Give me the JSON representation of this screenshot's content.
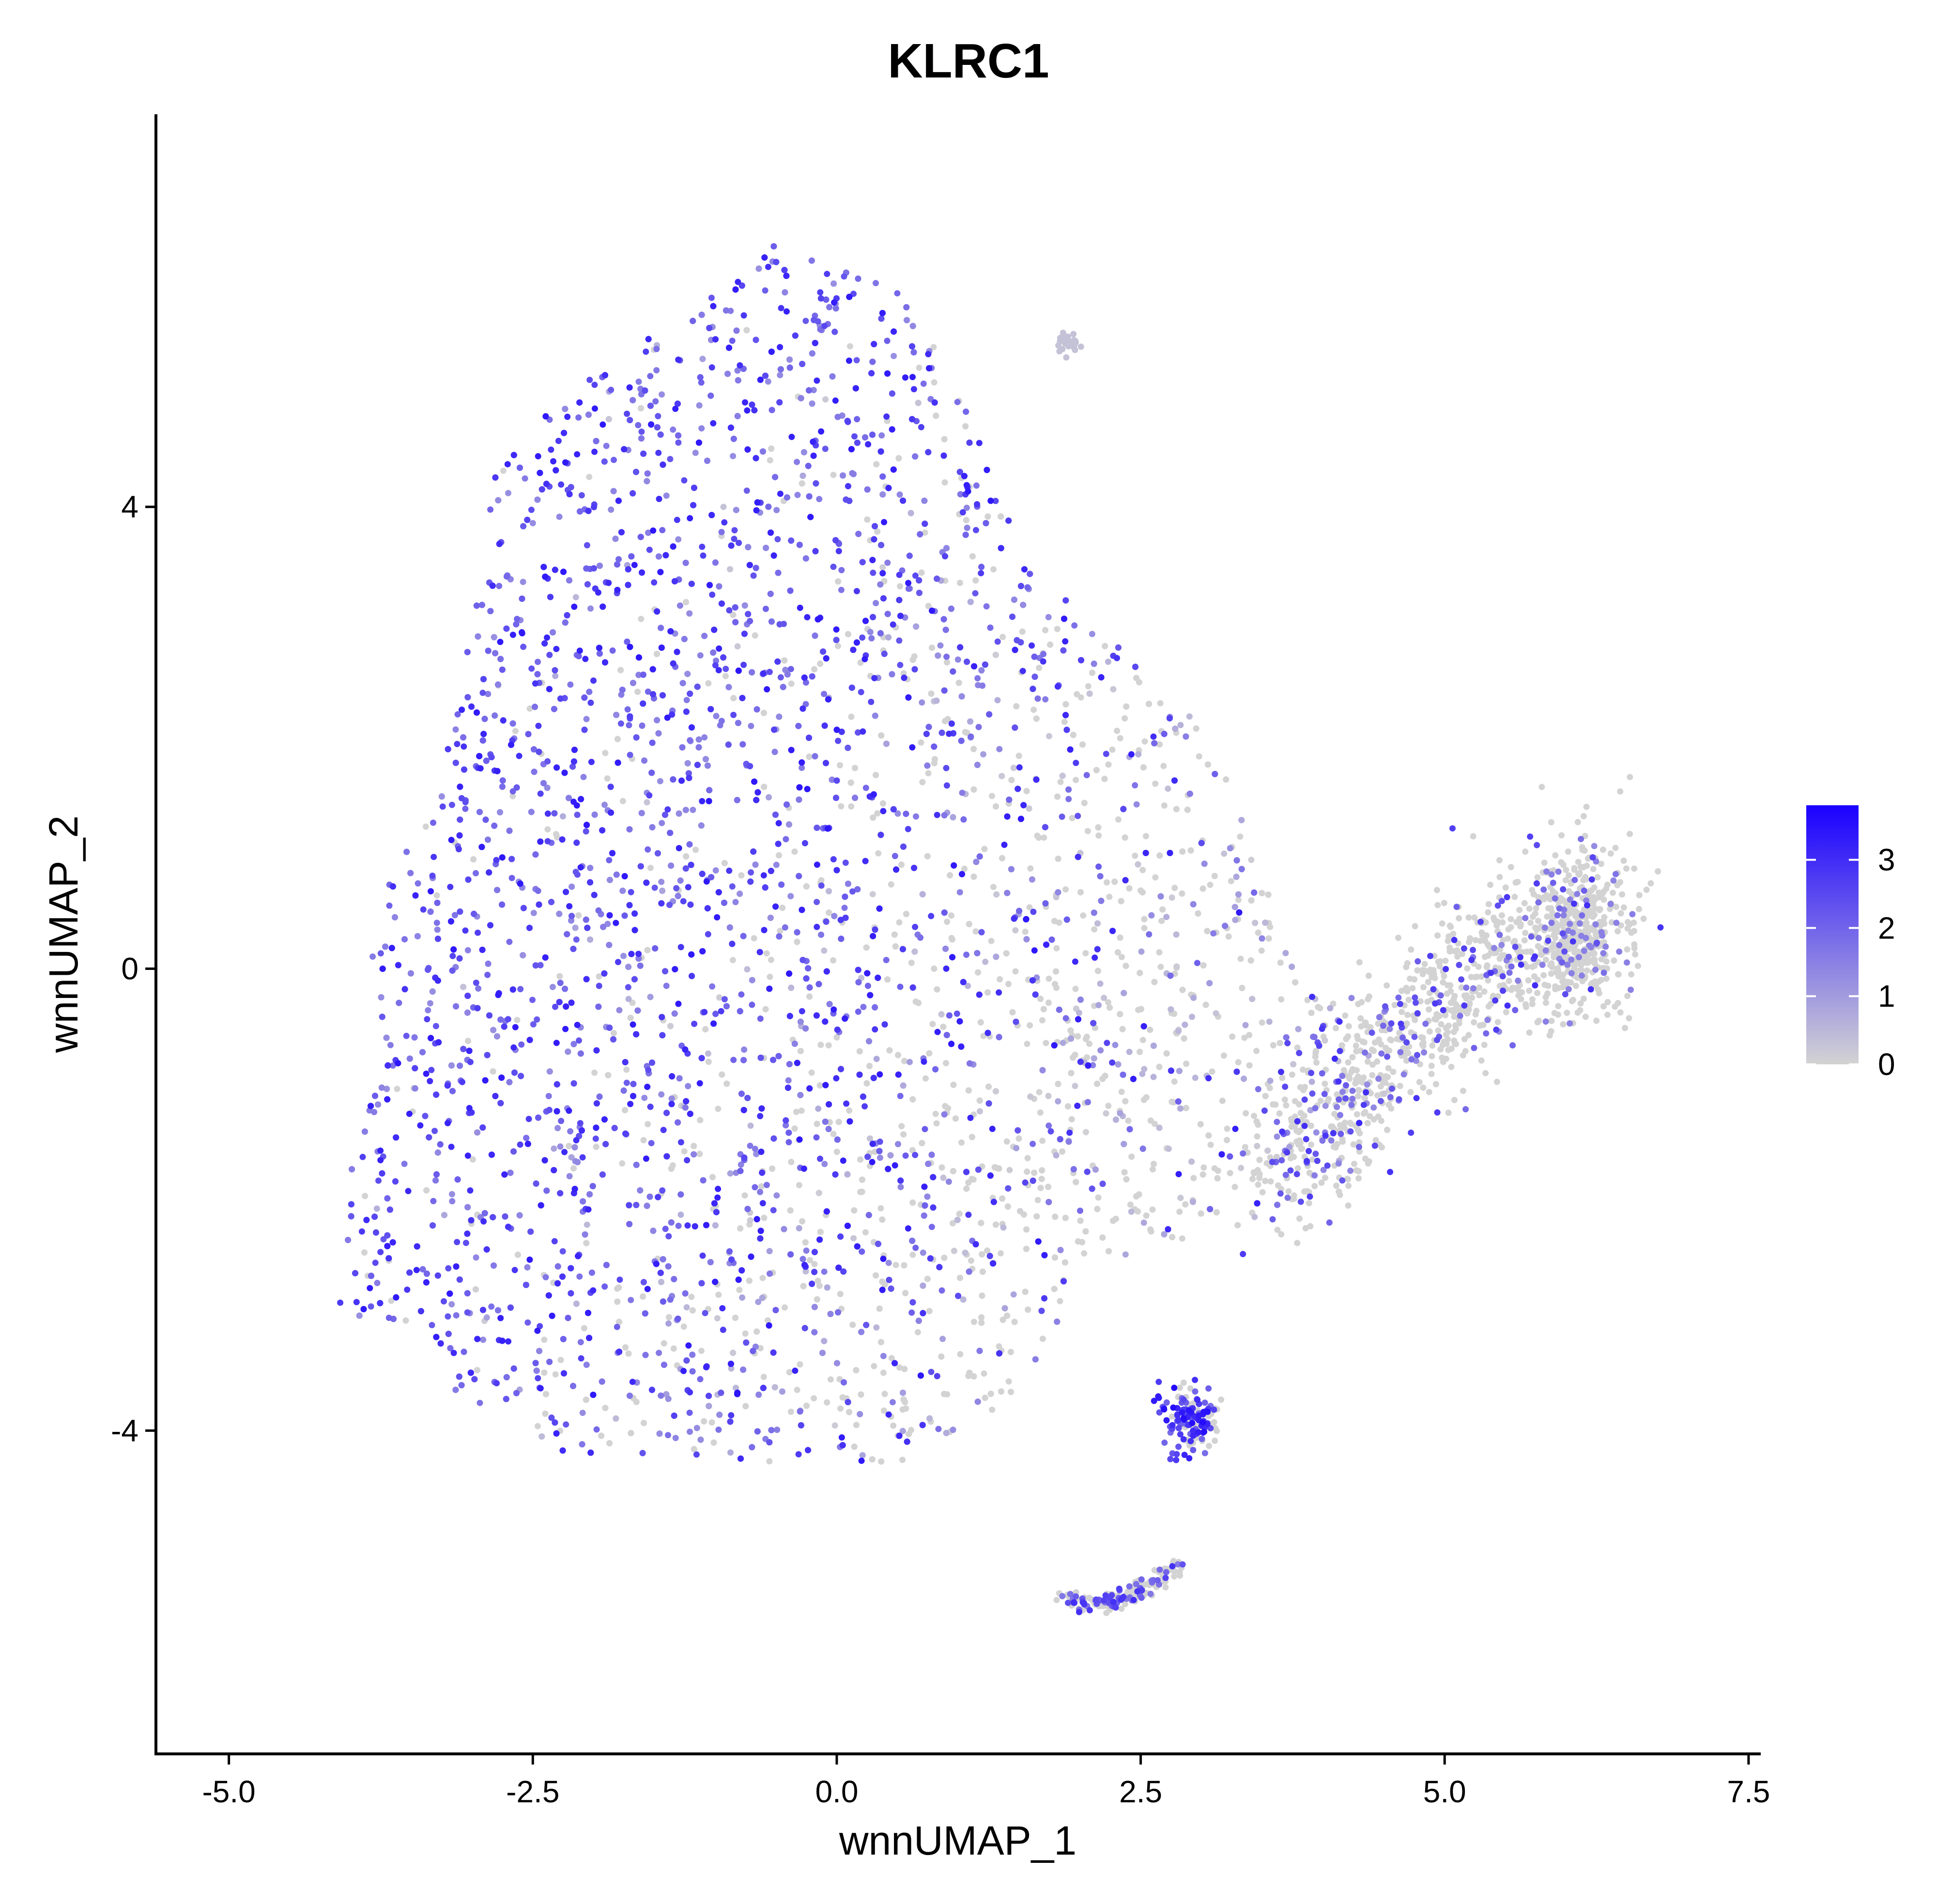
{
  "chart_data": {
    "type": "scatter",
    "title": "KLRC1",
    "xlabel": "wnnUMAP_1",
    "ylabel": "wnnUMAP_2",
    "xlim": [
      -5.6,
      7.6
    ],
    "ylim": [
      -6.8,
      7.4
    ],
    "x_ticks": [
      {
        "value": -5.0,
        "label": "-5.0"
      },
      {
        "value": -2.5,
        "label": "-2.5"
      },
      {
        "value": 0.0,
        "label": "0.0"
      },
      {
        "value": 2.5,
        "label": "2.5"
      },
      {
        "value": 5.0,
        "label": "5.0"
      },
      {
        "value": 7.5,
        "label": "7.5"
      }
    ],
    "y_ticks": [
      {
        "value": -4,
        "label": "-4"
      },
      {
        "value": 0,
        "label": "0"
      },
      {
        "value": 4,
        "label": "4"
      }
    ],
    "color_scale": {
      "low_color": "#d3d3d3",
      "high_color": "#1a00ff",
      "range": [
        0,
        3.8
      ],
      "legend_ticks": [
        {
          "value": 0,
          "label": "0"
        },
        {
          "value": 1,
          "label": "1"
        },
        {
          "value": 2,
          "label": "2"
        },
        {
          "value": 3,
          "label": "3"
        }
      ]
    },
    "grid": false,
    "legend_position": "right",
    "point_count_estimate": 9000,
    "regions": [
      {
        "name": "main cluster",
        "x_range": [
          -4.1,
          4.7
        ],
        "y_range": [
          -4.3,
          6.3
        ],
        "expression_level": "high (left) to low (lower right)"
      },
      {
        "name": "right arm",
        "x_range": [
          3.5,
          6.4
        ],
        "y_range": [
          -2.5,
          1.2
        ],
        "expression_level": "low to mixed"
      },
      {
        "name": "small cluster",
        "x_range": [
          2.5,
          3.2
        ],
        "y_range": [
          -4.2,
          -3.5
        ],
        "expression_level": "high"
      },
      {
        "name": "bottom arc",
        "x_range": [
          1.8,
          2.8
        ],
        "y_range": [
          -5.6,
          -5.0
        ],
        "expression_level": "mixed"
      }
    ]
  }
}
